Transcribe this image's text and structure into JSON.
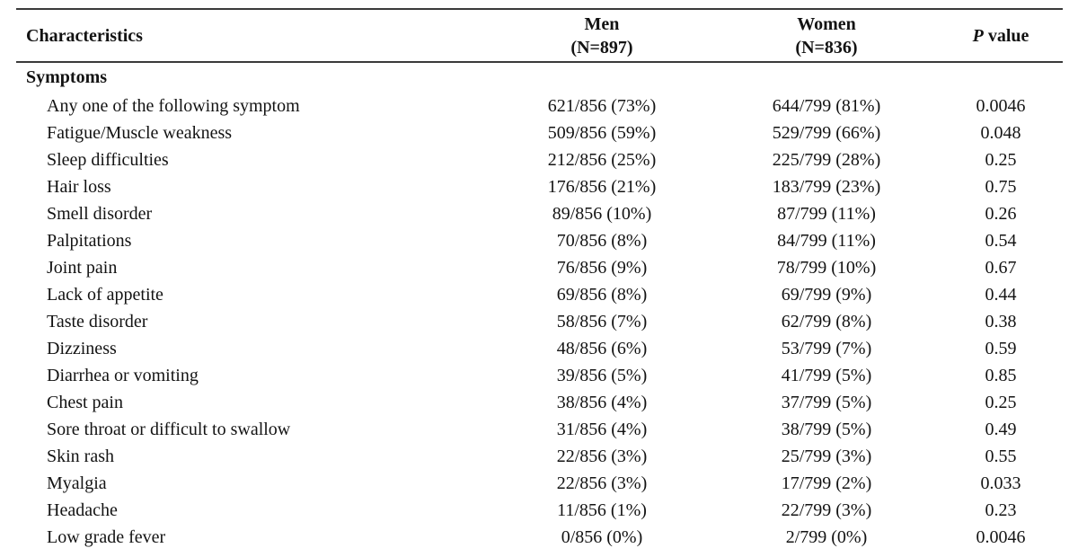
{
  "table": {
    "header": {
      "characteristics": "Characteristics",
      "men_line1": "Men",
      "men_line2": "(N=897)",
      "women_line1": "Women",
      "women_line2": "(N=836)",
      "p_label_italic": "P",
      "p_label_rest": " value"
    },
    "section": "Symptoms",
    "rows": [
      {
        "label": "Any one of the following symptom",
        "men": "621/856 (73%)",
        "women": "644/799 (81%)",
        "p": "0.0046"
      },
      {
        "label": "Fatigue/Muscle weakness",
        "men": "509/856 (59%)",
        "women": "529/799 (66%)",
        "p": "0.048"
      },
      {
        "label": "Sleep difficulties",
        "men": "212/856 (25%)",
        "women": "225/799 (28%)",
        "p": "0.25"
      },
      {
        "label": "Hair loss",
        "men": "176/856 (21%)",
        "women": "183/799 (23%)",
        "p": "0.75"
      },
      {
        "label": "Smell disorder",
        "men": "89/856 (10%)",
        "women": "87/799 (11%)",
        "p": "0.26"
      },
      {
        "label": "Palpitations",
        "men": "70/856 (8%)",
        "women": "84/799 (11%)",
        "p": "0.54"
      },
      {
        "label": "Joint pain",
        "men": "76/856 (9%)",
        "women": "78/799 (10%)",
        "p": "0.67"
      },
      {
        "label": "Lack of appetite",
        "men": "69/856 (8%)",
        "women": "69/799 (9%)",
        "p": "0.44"
      },
      {
        "label": "Taste disorder",
        "men": "58/856 (7%)",
        "women": "62/799 (8%)",
        "p": "0.38"
      },
      {
        "label": "Dizziness",
        "men": "48/856 (6%)",
        "women": "53/799 (7%)",
        "p": "0.59"
      },
      {
        "label": "Diarrhea or vomiting",
        "men": "39/856 (5%)",
        "women": "41/799 (5%)",
        "p": "0.85"
      },
      {
        "label": "Chest pain",
        "men": "38/856 (4%)",
        "women": "37/799 (5%)",
        "p": "0.25"
      },
      {
        "label": "Sore throat or difficult to swallow",
        "men": "31/856 (4%)",
        "women": "38/799 (5%)",
        "p": "0.49"
      },
      {
        "label": "Skin rash",
        "men": "22/856 (3%)",
        "women": "25/799 (3%)",
        "p": "0.55"
      },
      {
        "label": "Myalgia",
        "men": "22/856 (3%)",
        "women": "17/799 (2%)",
        "p": "0.033"
      },
      {
        "label": "Headache",
        "men": "11/856 (1%)",
        "women": "22/799 (3%)",
        "p": "0.23"
      },
      {
        "label": "Low grade fever",
        "men": "0/856 (0%)",
        "women": "2/799 (0%)",
        "p": "0.0046"
      }
    ]
  }
}
